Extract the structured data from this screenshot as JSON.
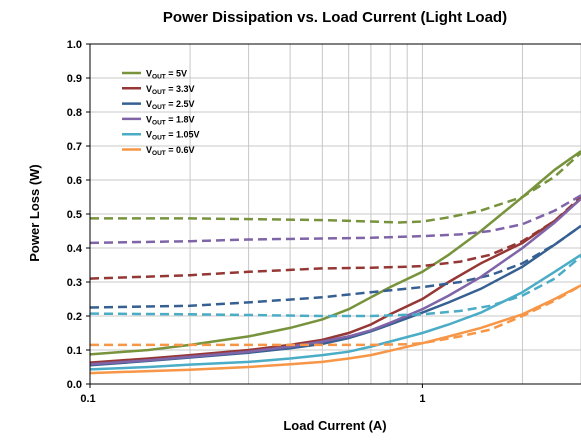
{
  "chart_data": {
    "type": "line",
    "title": "Power Dissipation vs. Load Current (Light Load)",
    "xlabel": "Load Current (A)",
    "ylabel": "Power Loss (W)",
    "x_scale": "log",
    "xlim": [
      0.1,
      3
    ],
    "ylim": [
      0,
      1.0
    ],
    "x_ticks": [
      {
        "value": 0.1,
        "label": "0.1"
      },
      {
        "value": 1,
        "label": "1"
      }
    ],
    "y_ticks": [
      {
        "value": 0.0,
        "label": "0.0"
      },
      {
        "value": 0.1,
        "label": "0.1"
      },
      {
        "value": 0.2,
        "label": "0.2"
      },
      {
        "value": 0.3,
        "label": "0.3"
      },
      {
        "value": 0.4,
        "label": "0.4"
      },
      {
        "value": 0.5,
        "label": "0.5"
      },
      {
        "value": 0.6,
        "label": "0.6"
      },
      {
        "value": 0.7,
        "label": "0.7"
      },
      {
        "value": 0.8,
        "label": "0.8"
      },
      {
        "value": 0.9,
        "label": "0.9"
      },
      {
        "value": 1.0,
        "label": "1.0"
      }
    ],
    "grid": true,
    "legend_position": "top-left",
    "series": [
      {
        "name": "VOUT = 5V",
        "base": "V",
        "sub": "OUT",
        "rest": " = 5V",
        "color": "#77933c",
        "solid": [
          [
            0.1,
            0.087
          ],
          [
            0.15,
            0.1
          ],
          [
            0.2,
            0.115
          ],
          [
            0.3,
            0.14
          ],
          [
            0.4,
            0.165
          ],
          [
            0.5,
            0.19
          ],
          [
            0.6,
            0.22
          ],
          [
            0.7,
            0.255
          ],
          [
            0.8,
            0.285
          ],
          [
            1.0,
            0.33
          ],
          [
            1.2,
            0.38
          ],
          [
            1.5,
            0.45
          ],
          [
            2.0,
            0.55
          ],
          [
            2.5,
            0.63
          ],
          [
            3.0,
            0.685
          ]
        ],
        "dashed": [
          [
            0.1,
            0.487
          ],
          [
            0.2,
            0.487
          ],
          [
            0.3,
            0.485
          ],
          [
            0.5,
            0.482
          ],
          [
            0.7,
            0.478
          ],
          [
            0.85,
            0.475
          ],
          [
            1.0,
            0.478
          ],
          [
            1.2,
            0.49
          ],
          [
            1.5,
            0.51
          ],
          [
            2.0,
            0.55
          ],
          [
            2.5,
            0.61
          ],
          [
            3.0,
            0.68
          ]
        ]
      },
      {
        "name": "VOUT = 3.3V",
        "base": "V",
        "sub": "OUT",
        "rest": " = 3.3V",
        "color": "#953735",
        "solid": [
          [
            0.1,
            0.063
          ],
          [
            0.15,
            0.075
          ],
          [
            0.2,
            0.085
          ],
          [
            0.3,
            0.1
          ],
          [
            0.4,
            0.115
          ],
          [
            0.5,
            0.13
          ],
          [
            0.6,
            0.15
          ],
          [
            0.7,
            0.175
          ],
          [
            0.8,
            0.205
          ],
          [
            1.0,
            0.25
          ],
          [
            1.2,
            0.3
          ],
          [
            1.5,
            0.355
          ],
          [
            2.0,
            0.415
          ],
          [
            2.5,
            0.48
          ],
          [
            3.0,
            0.545
          ]
        ],
        "dashed": [
          [
            0.1,
            0.31
          ],
          [
            0.2,
            0.32
          ],
          [
            0.3,
            0.33
          ],
          [
            0.5,
            0.34
          ],
          [
            0.7,
            0.342
          ],
          [
            0.9,
            0.345
          ],
          [
            1.0,
            0.347
          ],
          [
            1.3,
            0.36
          ],
          [
            1.6,
            0.38
          ],
          [
            2.0,
            0.42
          ],
          [
            2.5,
            0.48
          ],
          [
            3.0,
            0.55
          ]
        ]
      },
      {
        "name": "VOUT = 2.5V",
        "base": "V",
        "sub": "OUT",
        "rest": " = 2.5V",
        "color": "#376092",
        "solid": [
          [
            0.1,
            0.055
          ],
          [
            0.15,
            0.068
          ],
          [
            0.2,
            0.078
          ],
          [
            0.3,
            0.092
          ],
          [
            0.4,
            0.105
          ],
          [
            0.5,
            0.118
          ],
          [
            0.6,
            0.135
          ],
          [
            0.7,
            0.155
          ],
          [
            0.8,
            0.175
          ],
          [
            1.0,
            0.21
          ],
          [
            1.2,
            0.24
          ],
          [
            1.5,
            0.28
          ],
          [
            2.0,
            0.345
          ],
          [
            2.5,
            0.41
          ],
          [
            3.0,
            0.465
          ]
        ],
        "dashed": [
          [
            0.1,
            0.225
          ],
          [
            0.2,
            0.23
          ],
          [
            0.3,
            0.24
          ],
          [
            0.5,
            0.255
          ],
          [
            0.7,
            0.27
          ],
          [
            1.0,
            0.285
          ],
          [
            1.3,
            0.3
          ],
          [
            1.6,
            0.32
          ],
          [
            2.0,
            0.355
          ],
          [
            2.5,
            0.41
          ],
          [
            3.0,
            0.465
          ]
        ]
      },
      {
        "name": "VOUT = 1.8V",
        "base": "V",
        "sub": "OUT",
        "rest": " = 1.8V",
        "color": "#7f64a8",
        "solid": [
          [
            0.1,
            0.058
          ],
          [
            0.15,
            0.07
          ],
          [
            0.2,
            0.08
          ],
          [
            0.3,
            0.095
          ],
          [
            0.4,
            0.11
          ],
          [
            0.5,
            0.125
          ],
          [
            0.6,
            0.14
          ],
          [
            0.7,
            0.158
          ],
          [
            0.8,
            0.18
          ],
          [
            1.0,
            0.22
          ],
          [
            1.2,
            0.26
          ],
          [
            1.5,
            0.315
          ],
          [
            2.0,
            0.4
          ],
          [
            2.5,
            0.475
          ],
          [
            3.0,
            0.545
          ]
        ],
        "dashed": [
          [
            0.1,
            0.415
          ],
          [
            0.2,
            0.42
          ],
          [
            0.3,
            0.425
          ],
          [
            0.5,
            0.428
          ],
          [
            0.7,
            0.43
          ],
          [
            1.0,
            0.435
          ],
          [
            1.3,
            0.44
          ],
          [
            1.6,
            0.45
          ],
          [
            2.0,
            0.47
          ],
          [
            2.5,
            0.51
          ],
          [
            3.0,
            0.555
          ]
        ]
      },
      {
        "name": "VOUT = 1.05V",
        "base": "V",
        "sub": "OUT",
        "rest": " = 1.05V",
        "color": "#4bacc6",
        "solid": [
          [
            0.1,
            0.043
          ],
          [
            0.15,
            0.05
          ],
          [
            0.2,
            0.057
          ],
          [
            0.3,
            0.065
          ],
          [
            0.4,
            0.075
          ],
          [
            0.5,
            0.085
          ],
          [
            0.6,
            0.095
          ],
          [
            0.7,
            0.11
          ],
          [
            0.8,
            0.125
          ],
          [
            1.0,
            0.15
          ],
          [
            1.2,
            0.175
          ],
          [
            1.5,
            0.21
          ],
          [
            2.0,
            0.27
          ],
          [
            2.5,
            0.33
          ],
          [
            3.0,
            0.38
          ]
        ],
        "dashed": [
          [
            0.1,
            0.207
          ],
          [
            0.2,
            0.205
          ],
          [
            0.3,
            0.203
          ],
          [
            0.5,
            0.2
          ],
          [
            0.7,
            0.2
          ],
          [
            1.0,
            0.205
          ],
          [
            1.3,
            0.215
          ],
          [
            1.6,
            0.23
          ],
          [
            2.0,
            0.26
          ],
          [
            2.5,
            0.31
          ],
          [
            3.0,
            0.375
          ]
        ]
      },
      {
        "name": "VOUT = 0.6V",
        "base": "V",
        "sub": "OUT",
        "rest": " = 0.6V",
        "color": "#f79646",
        "solid": [
          [
            0.1,
            0.032
          ],
          [
            0.15,
            0.038
          ],
          [
            0.2,
            0.042
          ],
          [
            0.3,
            0.05
          ],
          [
            0.4,
            0.058
          ],
          [
            0.5,
            0.065
          ],
          [
            0.6,
            0.075
          ],
          [
            0.7,
            0.085
          ],
          [
            0.8,
            0.098
          ],
          [
            1.0,
            0.12
          ],
          [
            1.2,
            0.14
          ],
          [
            1.5,
            0.165
          ],
          [
            2.0,
            0.205
          ],
          [
            2.5,
            0.25
          ],
          [
            3.0,
            0.29
          ]
        ],
        "dashed": [
          [
            0.1,
            0.115
          ],
          [
            0.2,
            0.115
          ],
          [
            0.3,
            0.115
          ],
          [
            0.5,
            0.115
          ],
          [
            0.7,
            0.115
          ],
          [
            0.9,
            0.117
          ],
          [
            1.0,
            0.12
          ],
          [
            1.3,
            0.14
          ],
          [
            1.6,
            0.16
          ],
          [
            2.0,
            0.2
          ],
          [
            2.5,
            0.245
          ],
          [
            3.0,
            0.29
          ]
        ]
      }
    ]
  }
}
